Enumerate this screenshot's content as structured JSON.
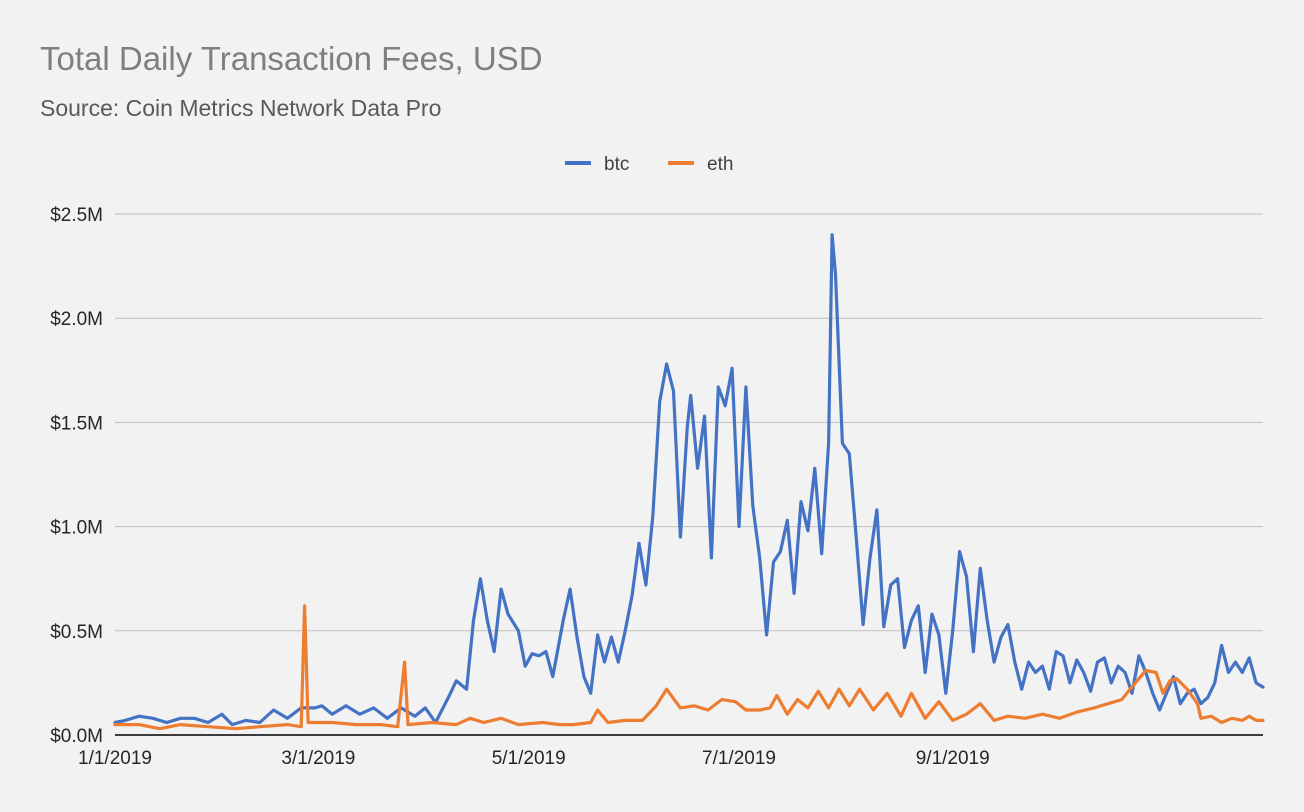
{
  "chart_data": {
    "type": "line",
    "title": "Total Daily Transaction Fees, USD",
    "subtitle": "Source: Coin Metrics Network Data Pro",
    "xlabel": "",
    "ylabel": "",
    "x_range": [
      "1/1/2019",
      "11/30/2019"
    ],
    "x_ticks": [
      "1/1/2019",
      "3/1/2019",
      "5/1/2019",
      "7/1/2019",
      "9/1/2019"
    ],
    "y_ticks": [
      "$0.0M",
      "$0.5M",
      "$1.0M",
      "$1.5M",
      "$2.0M",
      "$2.5M"
    ],
    "ylim": [
      0,
      2.5
    ],
    "y_unit": "$M",
    "grid": "horizontal",
    "legend_position": "top",
    "series": [
      {
        "name": "btc",
        "color": "#4472c4",
        "points": [
          [
            "1/1/2019",
            0.06
          ],
          [
            "1/4/2019",
            0.07
          ],
          [
            "1/8/2019",
            0.09
          ],
          [
            "1/12/2019",
            0.08
          ],
          [
            "1/16/2019",
            0.06
          ],
          [
            "1/20/2019",
            0.08
          ],
          [
            "1/24/2019",
            0.08
          ],
          [
            "1/28/2019",
            0.06
          ],
          [
            "2/1/2019",
            0.1
          ],
          [
            "2/4/2019",
            0.05
          ],
          [
            "2/8/2019",
            0.07
          ],
          [
            "2/12/2019",
            0.06
          ],
          [
            "2/16/2019",
            0.12
          ],
          [
            "2/20/2019",
            0.08
          ],
          [
            "2/24/2019",
            0.13
          ],
          [
            "2/28/2019",
            0.13
          ],
          [
            "3/2/2019",
            0.14
          ],
          [
            "3/5/2019",
            0.1
          ],
          [
            "3/9/2019",
            0.14
          ],
          [
            "3/13/2019",
            0.1
          ],
          [
            "3/17/2019",
            0.13
          ],
          [
            "3/21/2019",
            0.08
          ],
          [
            "3/25/2019",
            0.13
          ],
          [
            "3/29/2019",
            0.09
          ],
          [
            "4/1/2019",
            0.13
          ],
          [
            "4/4/2019",
            0.06
          ],
          [
            "4/8/2019",
            0.19
          ],
          [
            "4/10/2019",
            0.26
          ],
          [
            "4/13/2019",
            0.22
          ],
          [
            "4/15/2019",
            0.55
          ],
          [
            "4/17/2019",
            0.75
          ],
          [
            "4/19/2019",
            0.55
          ],
          [
            "4/21/2019",
            0.4
          ],
          [
            "4/23/2019",
            0.7
          ],
          [
            "4/25/2019",
            0.58
          ],
          [
            "4/28/2019",
            0.5
          ],
          [
            "4/30/2019",
            0.33
          ],
          [
            "5/2/2019",
            0.39
          ],
          [
            "5/4/2019",
            0.38
          ],
          [
            "5/6/2019",
            0.4
          ],
          [
            "5/8/2019",
            0.28
          ],
          [
            "5/11/2019",
            0.55
          ],
          [
            "5/13/2019",
            0.7
          ],
          [
            "5/15/2019",
            0.47
          ],
          [
            "5/17/2019",
            0.28
          ],
          [
            "5/19/2019",
            0.2
          ],
          [
            "5/21/2019",
            0.48
          ],
          [
            "5/23/2019",
            0.35
          ],
          [
            "5/25/2019",
            0.47
          ],
          [
            "5/27/2019",
            0.35
          ],
          [
            "5/29/2019",
            0.5
          ],
          [
            "5/31/2019",
            0.67
          ],
          [
            "6/2/2019",
            0.92
          ],
          [
            "6/4/2019",
            0.72
          ],
          [
            "6/6/2019",
            1.05
          ],
          [
            "6/8/2019",
            1.6
          ],
          [
            "6/10/2019",
            1.78
          ],
          [
            "6/12/2019",
            1.65
          ],
          [
            "6/14/2019",
            0.95
          ],
          [
            "6/16/2019",
            1.48
          ],
          [
            "6/17/2019",
            1.63
          ],
          [
            "6/19/2019",
            1.28
          ],
          [
            "6/21/2019",
            1.53
          ],
          [
            "6/23/2019",
            0.85
          ],
          [
            "6/25/2019",
            1.67
          ],
          [
            "6/27/2019",
            1.58
          ],
          [
            "6/29/2019",
            1.76
          ],
          [
            "7/1/2019",
            1.0
          ],
          [
            "7/3/2019",
            1.67
          ],
          [
            "7/5/2019",
            1.1
          ],
          [
            "7/7/2019",
            0.85
          ],
          [
            "7/9/2019",
            0.48
          ],
          [
            "7/11/2019",
            0.83
          ],
          [
            "7/13/2019",
            0.88
          ],
          [
            "7/15/2019",
            1.03
          ],
          [
            "7/17/2019",
            0.68
          ],
          [
            "7/19/2019",
            1.12
          ],
          [
            "7/21/2019",
            0.98
          ],
          [
            "7/23/2019",
            1.28
          ],
          [
            "7/25/2019",
            0.87
          ],
          [
            "7/27/2019",
            1.4
          ],
          [
            "7/28/2019",
            2.4
          ],
          [
            "7/29/2019",
            2.21
          ],
          [
            "7/31/2019",
            1.4
          ],
          [
            "8/2/2019",
            1.35
          ],
          [
            "8/4/2019",
            0.95
          ],
          [
            "8/6/2019",
            0.53
          ],
          [
            "8/8/2019",
            0.85
          ],
          [
            "8/10/2019",
            1.08
          ],
          [
            "8/12/2019",
            0.52
          ],
          [
            "8/14/2019",
            0.72
          ],
          [
            "8/16/2019",
            0.75
          ],
          [
            "8/18/2019",
            0.42
          ],
          [
            "8/20/2019",
            0.55
          ],
          [
            "8/22/2019",
            0.62
          ],
          [
            "8/24/2019",
            0.3
          ],
          [
            "8/26/2019",
            0.58
          ],
          [
            "8/28/2019",
            0.48
          ],
          [
            "8/30/2019",
            0.2
          ],
          [
            "9/1/2019",
            0.5
          ],
          [
            "9/3/2019",
            0.88
          ],
          [
            "9/5/2019",
            0.76
          ],
          [
            "9/7/2019",
            0.4
          ],
          [
            "9/9/2019",
            0.8
          ],
          [
            "9/11/2019",
            0.55
          ],
          [
            "9/13/2019",
            0.35
          ],
          [
            "9/15/2019",
            0.47
          ],
          [
            "9/17/2019",
            0.53
          ],
          [
            "9/19/2019",
            0.35
          ],
          [
            "9/21/2019",
            0.22
          ],
          [
            "9/23/2019",
            0.35
          ],
          [
            "9/25/2019",
            0.3
          ],
          [
            "9/27/2019",
            0.33
          ],
          [
            "9/29/2019",
            0.22
          ],
          [
            "10/1/2019",
            0.4
          ],
          [
            "10/3/2019",
            0.38
          ],
          [
            "10/5/2019",
            0.25
          ],
          [
            "10/7/2019",
            0.36
          ],
          [
            "10/9/2019",
            0.3
          ],
          [
            "10/11/2019",
            0.21
          ],
          [
            "10/13/2019",
            0.35
          ],
          [
            "10/15/2019",
            0.37
          ],
          [
            "10/17/2019",
            0.25
          ],
          [
            "10/19/2019",
            0.33
          ],
          [
            "10/21/2019",
            0.3
          ],
          [
            "10/23/2019",
            0.2
          ],
          [
            "10/25/2019",
            0.38
          ],
          [
            "10/27/2019",
            0.3
          ],
          [
            "10/29/2019",
            0.2
          ],
          [
            "10/31/2019",
            0.12
          ],
          [
            "11/2/2019",
            0.2
          ],
          [
            "11/4/2019",
            0.28
          ],
          [
            "11/6/2019",
            0.15
          ],
          [
            "11/8/2019",
            0.2
          ],
          [
            "11/10/2019",
            0.22
          ],
          [
            "11/12/2019",
            0.15
          ],
          [
            "11/14/2019",
            0.18
          ],
          [
            "11/16/2019",
            0.25
          ],
          [
            "11/18/2019",
            0.43
          ],
          [
            "11/20/2019",
            0.3
          ],
          [
            "11/22/2019",
            0.35
          ],
          [
            "11/24/2019",
            0.3
          ],
          [
            "11/26/2019",
            0.37
          ],
          [
            "11/28/2019",
            0.25
          ],
          [
            "11/30/2019",
            0.23
          ]
        ]
      },
      {
        "name": "eth",
        "color": "#ed7d31",
        "points": [
          [
            "1/1/2019",
            0.05
          ],
          [
            "1/8/2019",
            0.05
          ],
          [
            "1/14/2019",
            0.03
          ],
          [
            "1/20/2019",
            0.05
          ],
          [
            "1/28/2019",
            0.04
          ],
          [
            "2/5/2019",
            0.03
          ],
          [
            "2/12/2019",
            0.04
          ],
          [
            "2/20/2019",
            0.05
          ],
          [
            "2/24/2019",
            0.04
          ],
          [
            "2/25/2019",
            0.62
          ],
          [
            "2/26/2019",
            0.06
          ],
          [
            "3/5/2019",
            0.06
          ],
          [
            "3/12/2019",
            0.05
          ],
          [
            "3/19/2019",
            0.05
          ],
          [
            "3/24/2019",
            0.04
          ],
          [
            "3/26/2019",
            0.35
          ],
          [
            "3/27/2019",
            0.05
          ],
          [
            "4/3/2019",
            0.06
          ],
          [
            "4/10/2019",
            0.05
          ],
          [
            "4/14/2019",
            0.08
          ],
          [
            "4/18/2019",
            0.06
          ],
          [
            "4/23/2019",
            0.08
          ],
          [
            "4/28/2019",
            0.05
          ],
          [
            "5/5/2019",
            0.06
          ],
          [
            "5/10/2019",
            0.05
          ],
          [
            "5/14/2019",
            0.05
          ],
          [
            "5/19/2019",
            0.06
          ],
          [
            "5/21/2019",
            0.12
          ],
          [
            "5/24/2019",
            0.06
          ],
          [
            "5/29/2019",
            0.07
          ],
          [
            "6/3/2019",
            0.07
          ],
          [
            "6/7/2019",
            0.14
          ],
          [
            "6/10/2019",
            0.22
          ],
          [
            "6/14/2019",
            0.13
          ],
          [
            "6/18/2019",
            0.14
          ],
          [
            "6/22/2019",
            0.12
          ],
          [
            "6/26/2019",
            0.17
          ],
          [
            "6/30/2019",
            0.16
          ],
          [
            "7/3/2019",
            0.12
          ],
          [
            "7/7/2019",
            0.12
          ],
          [
            "7/10/2019",
            0.13
          ],
          [
            "7/12/2019",
            0.19
          ],
          [
            "7/15/2019",
            0.1
          ],
          [
            "7/18/2019",
            0.17
          ],
          [
            "7/21/2019",
            0.13
          ],
          [
            "7/24/2019",
            0.21
          ],
          [
            "7/27/2019",
            0.13
          ],
          [
            "7/30/2019",
            0.22
          ],
          [
            "8/2/2019",
            0.14
          ],
          [
            "8/5/2019",
            0.22
          ],
          [
            "8/9/2019",
            0.12
          ],
          [
            "8/13/2019",
            0.2
          ],
          [
            "8/17/2019",
            0.09
          ],
          [
            "8/20/2019",
            0.2
          ],
          [
            "8/24/2019",
            0.08
          ],
          [
            "8/28/2019",
            0.16
          ],
          [
            "9/1/2019",
            0.07
          ],
          [
            "9/5/2019",
            0.1
          ],
          [
            "9/9/2019",
            0.15
          ],
          [
            "9/13/2019",
            0.07
          ],
          [
            "9/17/2019",
            0.09
          ],
          [
            "9/22/2019",
            0.08
          ],
          [
            "9/27/2019",
            0.1
          ],
          [
            "10/2/2019",
            0.08
          ],
          [
            "10/7/2019",
            0.11
          ],
          [
            "10/12/2019",
            0.13
          ],
          [
            "10/16/2019",
            0.15
          ],
          [
            "10/20/2019",
            0.17
          ],
          [
            "10/24/2019",
            0.25
          ],
          [
            "10/27/2019",
            0.31
          ],
          [
            "10/30/2019",
            0.3
          ],
          [
            "11/1/2019",
            0.2
          ],
          [
            "11/3/2019",
            0.26
          ],
          [
            "11/5/2019",
            0.27
          ],
          [
            "11/8/2019",
            0.22
          ],
          [
            "11/11/2019",
            0.15
          ],
          [
            "11/12/2019",
            0.08
          ],
          [
            "11/15/2019",
            0.09
          ],
          [
            "11/18/2019",
            0.06
          ],
          [
            "11/21/2019",
            0.08
          ],
          [
            "11/24/2019",
            0.07
          ],
          [
            "11/26/2019",
            0.09
          ],
          [
            "11/28/2019",
            0.07
          ],
          [
            "11/30/2019",
            0.07
          ]
        ]
      }
    ]
  }
}
